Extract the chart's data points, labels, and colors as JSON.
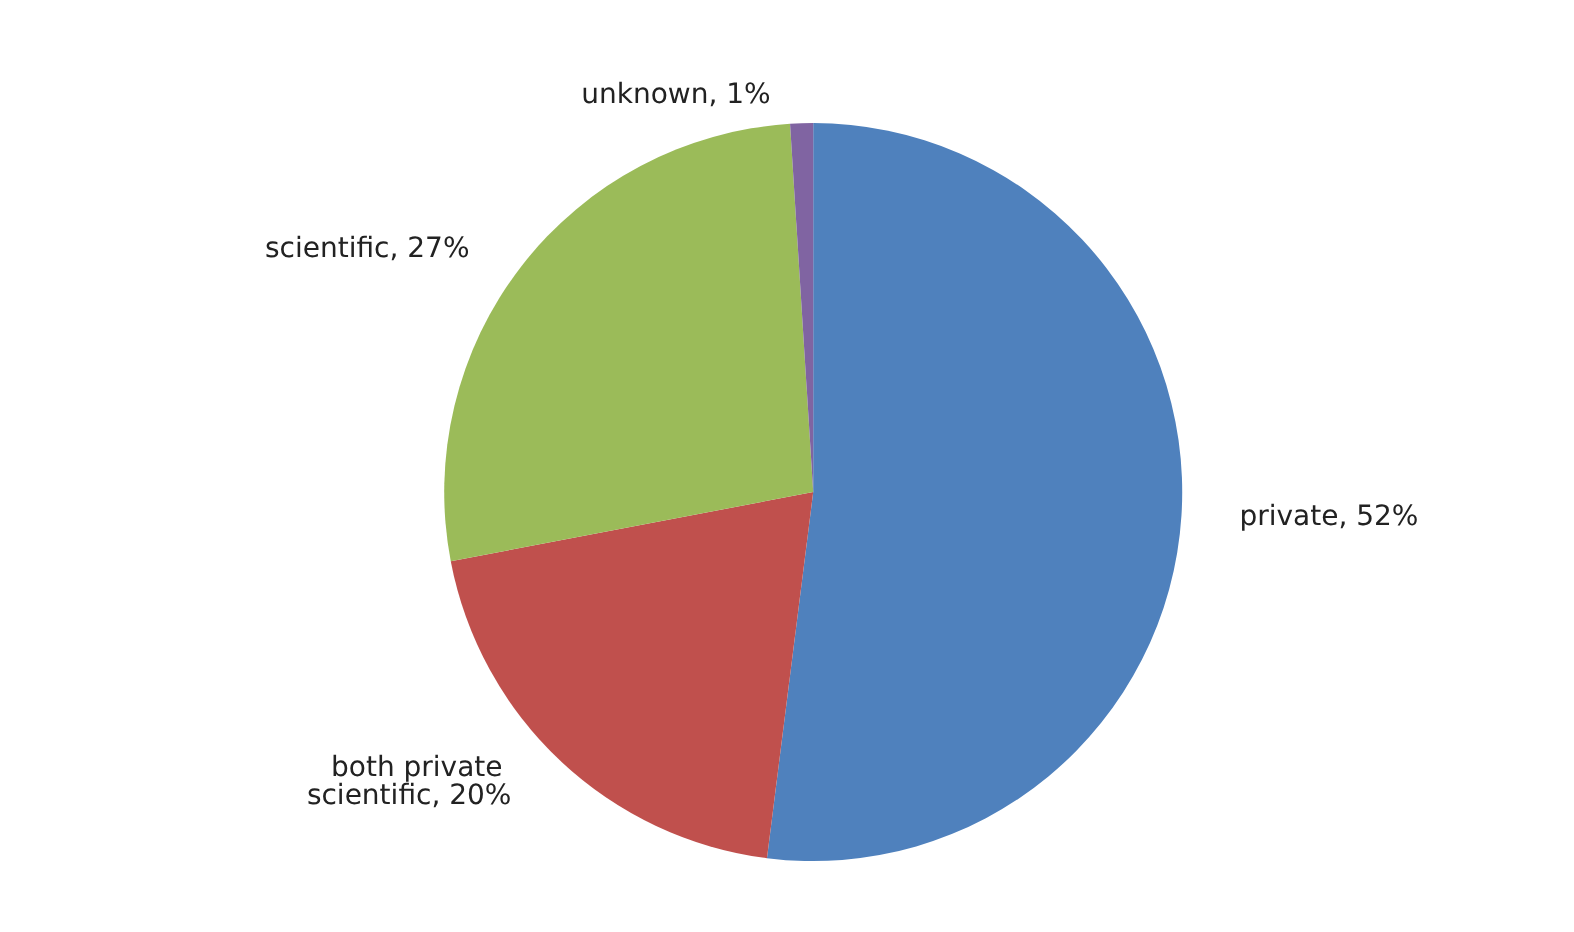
{
  "chart_data": {
    "type": "pie",
    "categories": [
      "private",
      "both private scientific",
      "scientific",
      "unknown"
    ],
    "values": [
      52,
      20,
      27,
      1
    ],
    "value_labels": [
      "52%",
      "20%",
      "27%",
      "1%"
    ],
    "colors": [
      "#4f81bd",
      "#c0504d",
      "#9bbb59",
      "#8064a2"
    ],
    "legend": false
  }
}
